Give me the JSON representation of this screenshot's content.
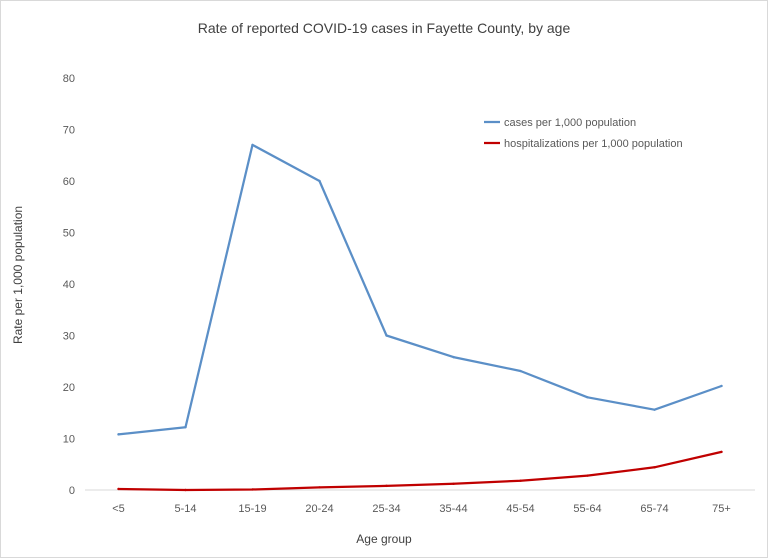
{
  "chart_data": {
    "type": "line",
    "title": "Rate of reported COVID-19 cases in Fayette County, by age",
    "xlabel": "Age group",
    "ylabel": "Rate per 1,000 population",
    "categories": [
      "<5",
      "5-14",
      "15-19",
      "20-24",
      "25-34",
      "35-44",
      "45-54",
      "55-64",
      "65-74",
      "75+"
    ],
    "ylim": [
      0,
      80
    ],
    "yticks": [
      0,
      10,
      20,
      30,
      40,
      50,
      60,
      70,
      80
    ],
    "grid": false,
    "legend_position": "top-right",
    "series": [
      {
        "name": "cases per 1,000 population",
        "color": "#5b8fc7",
        "values": [
          10.8,
          12.2,
          67.0,
          60.0,
          30.0,
          25.8,
          23.1,
          18.0,
          15.6,
          20.2
        ]
      },
      {
        "name": "hospitalizations per 1,000 population",
        "color": "#c00000",
        "values": [
          0.2,
          0.0,
          0.1,
          0.5,
          0.8,
          1.2,
          1.8,
          2.8,
          4.4,
          7.4
        ]
      }
    ]
  }
}
